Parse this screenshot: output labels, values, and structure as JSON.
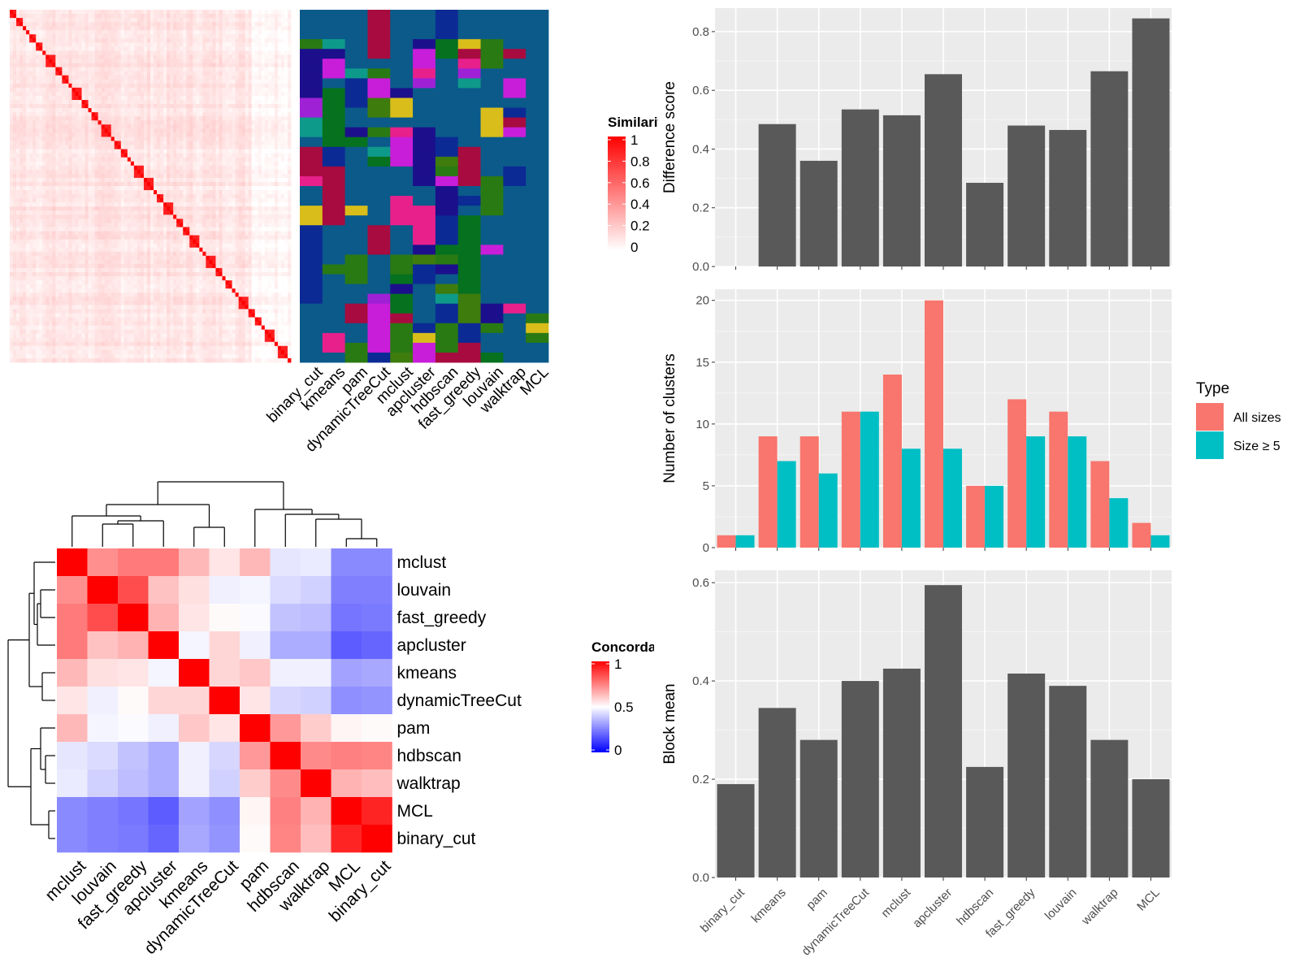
{
  "chart_data": [
    {
      "id": "similarity-heatmap",
      "type": "heatmap",
      "legend_title": "Similarity",
      "legend_ticks": [
        "1",
        "0.8",
        "0.6",
        "0.4",
        "0.2",
        "0"
      ],
      "colors": {
        "low": "#ffffff",
        "high": "#ff0000"
      }
    },
    {
      "id": "cluster-annotation",
      "type": "heatmap",
      "columns": [
        "binary_cut",
        "kmeans",
        "pam",
        "dynamicTreeCut",
        "mclust",
        "apcluster",
        "hdbscan",
        "fast_greedy",
        "louvain",
        "walktrap",
        "MCL"
      ],
      "palette": [
        "#0b5a8a",
        "#e8208c",
        "#0e9a8a",
        "#2a7a14",
        "#1c0f8c",
        "#9f21d6",
        "#06711f",
        "#a70b3f",
        "#d9bd1b",
        "#0c2a94",
        "#c81ed9",
        "#3e7c0d"
      ]
    },
    {
      "id": "concordance-heatmap",
      "type": "heatmap",
      "legend_title": "Concordance",
      "legend_ticks": [
        "1",
        "0.5",
        "0"
      ],
      "colors": {
        "low": "#0000ff",
        "mid": "#ffffff",
        "high": "#ff0000"
      },
      "rows": [
        "mclust",
        "louvain",
        "fast_greedy",
        "apcluster",
        "kmeans",
        "dynamicTreeCut",
        "pam",
        "hdbscan",
        "walktrap",
        "MCL",
        "binary_cut"
      ],
      "columns": [
        "mclust",
        "louvain",
        "fast_greedy",
        "apcluster",
        "kmeans",
        "dynamicTreeCut",
        "pam",
        "hdbscan",
        "walktrap",
        "MCL",
        "binary_cut"
      ],
      "values": [
        [
          1.0,
          0.72,
          0.76,
          0.76,
          0.64,
          0.55,
          0.64,
          0.45,
          0.46,
          0.27,
          0.27
        ],
        [
          0.72,
          1.0,
          0.85,
          0.62,
          0.56,
          0.47,
          0.48,
          0.43,
          0.41,
          0.25,
          0.25
        ],
        [
          0.76,
          0.85,
          1.0,
          0.65,
          0.55,
          0.51,
          0.49,
          0.38,
          0.37,
          0.23,
          0.24
        ],
        [
          0.76,
          0.62,
          0.65,
          1.0,
          0.48,
          0.58,
          0.47,
          0.34,
          0.34,
          0.18,
          0.2
        ],
        [
          0.64,
          0.56,
          0.55,
          0.48,
          1.0,
          0.58,
          0.61,
          0.47,
          0.47,
          0.32,
          0.33
        ],
        [
          0.55,
          0.47,
          0.51,
          0.58,
          0.58,
          1.0,
          0.55,
          0.42,
          0.41,
          0.28,
          0.29
        ],
        [
          0.64,
          0.48,
          0.49,
          0.47,
          0.61,
          0.55,
          1.0,
          0.7,
          0.6,
          0.52,
          0.51
        ],
        [
          0.45,
          0.43,
          0.38,
          0.34,
          0.47,
          0.42,
          0.7,
          1.0,
          0.73,
          0.75,
          0.74
        ],
        [
          0.46,
          0.41,
          0.37,
          0.34,
          0.47,
          0.41,
          0.6,
          0.73,
          1.0,
          0.65,
          0.63
        ],
        [
          0.27,
          0.25,
          0.23,
          0.18,
          0.32,
          0.28,
          0.52,
          0.75,
          0.65,
          1.0,
          0.93
        ],
        [
          0.27,
          0.25,
          0.24,
          0.2,
          0.33,
          0.29,
          0.51,
          0.74,
          0.63,
          0.93,
          1.0
        ]
      ]
    },
    {
      "id": "difference-score",
      "type": "bar",
      "categories": [
        "binary_cut",
        "kmeans",
        "pam",
        "dynamicTreeCut",
        "mclust",
        "apcluster",
        "hdbscan",
        "fast_greedy",
        "louvain",
        "walktrap",
        "MCL"
      ],
      "values": [
        0.0,
        0.485,
        0.36,
        0.535,
        0.515,
        0.655,
        0.285,
        0.48,
        0.465,
        0.665,
        0.845
      ],
      "ylabel": "Difference score",
      "ylim": [
        0,
        0.88
      ],
      "yticks": [
        0.0,
        0.2,
        0.4,
        0.6,
        0.8
      ],
      "ytick_labels": [
        "0.0",
        "0.2",
        "0.4",
        "0.6",
        "0.8"
      ],
      "bar_color": "#595959",
      "grid": true
    },
    {
      "id": "number-of-clusters",
      "type": "bar",
      "categories": [
        "binary_cut",
        "kmeans",
        "pam",
        "dynamicTreeCut",
        "mclust",
        "apcluster",
        "hdbscan",
        "fast_greedy",
        "louvain",
        "walktrap",
        "MCL"
      ],
      "series": [
        {
          "name": "All sizes",
          "values": [
            1,
            9,
            9,
            11,
            14,
            20,
            5,
            12,
            11,
            7,
            2
          ],
          "color": "#f8766d"
        },
        {
          "name": "Size ≥ 5",
          "values": [
            1,
            7,
            6,
            11,
            8,
            8,
            5,
            9,
            9,
            4,
            1
          ],
          "color": "#00bfc4"
        }
      ],
      "ylabel": "Number of clusters",
      "ylim": [
        0,
        20.9
      ],
      "yticks": [
        0,
        5,
        10,
        15,
        20
      ],
      "ytick_labels": [
        "0",
        "5",
        "10",
        "15",
        "20"
      ],
      "legend_title": "Type",
      "legend_position": "right",
      "grid": true
    },
    {
      "id": "block-mean",
      "type": "bar",
      "categories": [
        "binary_cut",
        "kmeans",
        "pam",
        "dynamicTreeCut",
        "mclust",
        "apcluster",
        "hdbscan",
        "fast_greedy",
        "louvain",
        "walktrap",
        "MCL"
      ],
      "values": [
        0.19,
        0.345,
        0.28,
        0.4,
        0.425,
        0.595,
        0.225,
        0.415,
        0.39,
        0.28,
        0.2
      ],
      "ylabel": "Block mean",
      "ylim": [
        0,
        0.625
      ],
      "yticks": [
        0.0,
        0.2,
        0.4,
        0.6
      ],
      "ytick_labels": [
        "0.0",
        "0.2",
        "0.4",
        "0.6"
      ],
      "bar_color": "#595959",
      "grid": true
    }
  ]
}
